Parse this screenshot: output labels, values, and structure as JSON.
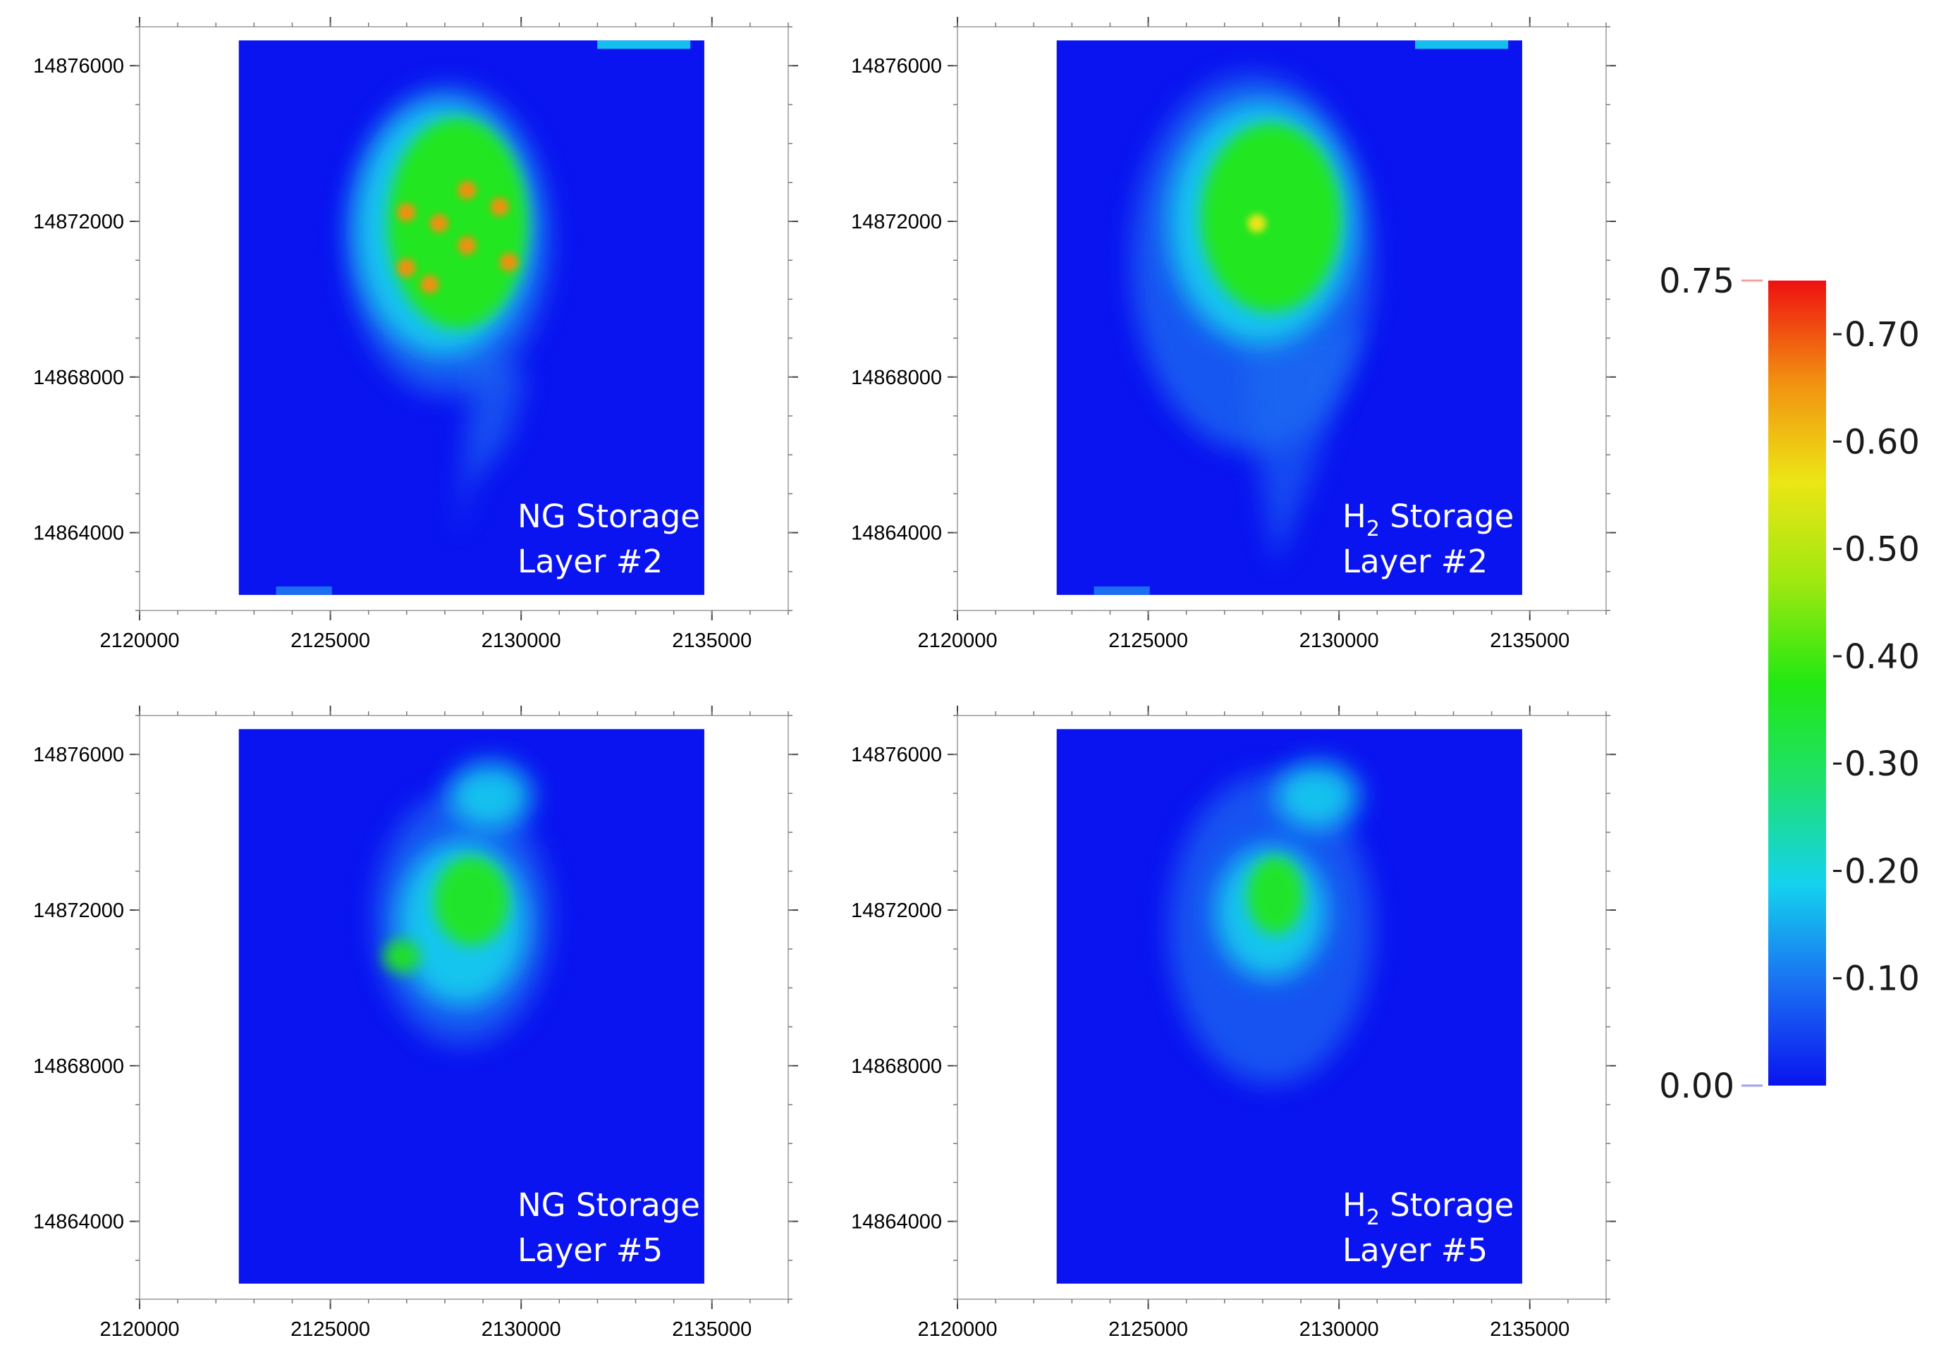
{
  "panels": [
    {
      "id": "ng-layer-2",
      "label_line1": "NG Storage",
      "label_line2": "Layer #2",
      "x_ticks": [
        "2120000",
        "2125000",
        "2130000",
        "2135000"
      ],
      "y_ticks": [
        "14876000",
        "14872000",
        "14868000",
        "14864000"
      ]
    },
    {
      "id": "h2-layer-2",
      "label_line1_main": "H",
      "label_line1_sub": "2",
      "label_line1_rest": " Storage",
      "label_line2": "Layer #2",
      "x_ticks": [
        "2120000",
        "2125000",
        "2130000",
        "2135000"
      ],
      "y_ticks": [
        "14876000",
        "14872000",
        "14868000",
        "14864000"
      ]
    },
    {
      "id": "ng-layer-5",
      "label_line1": "NG Storage",
      "label_line2": "Layer #5",
      "x_ticks": [
        "2120000",
        "2125000",
        "2130000",
        "2135000"
      ],
      "y_ticks": [
        "14876000",
        "14872000",
        "14868000",
        "14864000"
      ]
    },
    {
      "id": "h2-layer-5",
      "label_line1_main": "H",
      "label_line1_sub": "2",
      "label_line1_rest": " Storage",
      "label_line2": "Layer #5",
      "x_ticks": [
        "2120000",
        "2125000",
        "2130000",
        "2135000"
      ],
      "y_ticks": [
        "14876000",
        "14872000",
        "14868000",
        "14864000"
      ]
    }
  ],
  "axes": {
    "x_range": [
      2120000,
      2137000
    ],
    "y_range": [
      14862000,
      14877000
    ],
    "grid_x_range": [
      2122600,
      2134800
    ],
    "grid_y_range": [
      14862400,
      14876650
    ]
  },
  "colorbar": {
    "min_label": "0.00",
    "max_label": "0.75",
    "min": 0,
    "max": 0.75,
    "tick_labels": [
      "0.70",
      "0.60",
      "0.50",
      "0.40",
      "0.30",
      "0.20",
      "0.10"
    ],
    "tick_values": [
      0.7,
      0.6,
      0.5,
      0.4,
      0.3,
      0.2,
      0.1
    ],
    "colors": [
      "#0a14f0",
      "#1a6ef2",
      "#14d2ee",
      "#1ee070",
      "#22e812",
      "#9ee810",
      "#ece615",
      "#f29010",
      "#ef1010"
    ]
  },
  "colors": {
    "background_field": "#0a14f0",
    "frame": "#b4b4b4"
  }
}
